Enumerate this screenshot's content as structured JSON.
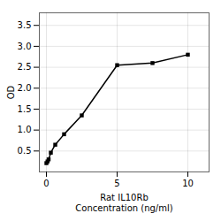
{
  "chart_data": {
    "type": "line",
    "x": [
      0,
      0.078,
      0.156,
      0.313,
      0.625,
      1.25,
      2.5,
      5,
      7.5,
      10
    ],
    "values": [
      0.21,
      0.25,
      0.3,
      0.46,
      0.65,
      0.9,
      1.35,
      2.55,
      2.6,
      2.8
    ],
    "xlabel": "Rat IL10Rb\nConcentration (ng/ml)",
    "ylabel": "OD",
    "marker": "square",
    "xlim": [
      -0.5,
      11.5
    ],
    "ylim": [
      0,
      3.8
    ],
    "xticks": [
      0,
      5,
      10
    ],
    "yticks": [
      0.5,
      {
        "value": 1,
        "label": "1.0"
      },
      1.5,
      {
        "value": 2,
        "label": "2.0"
      },
      2.5,
      {
        "value": 3,
        "label": "3.0"
      },
      3.5
    ],
    "grid": true
  }
}
